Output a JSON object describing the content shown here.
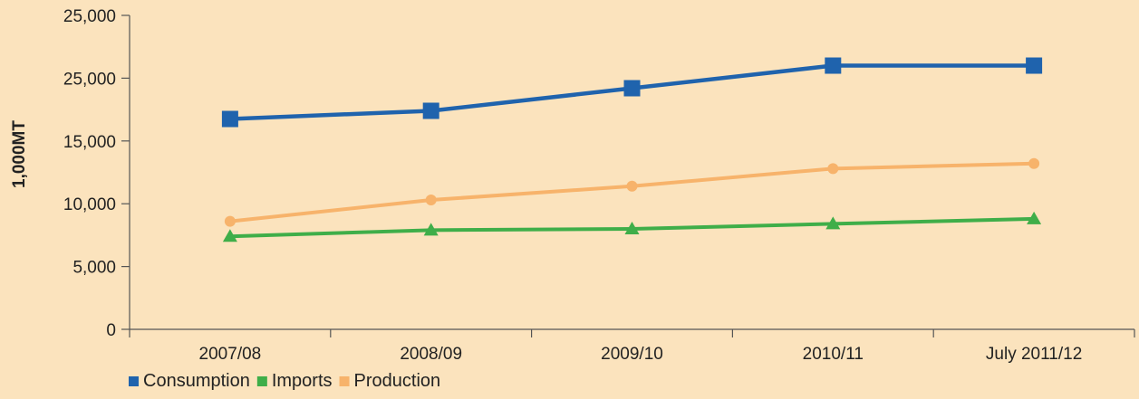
{
  "chart_data": {
    "type": "line",
    "title": "",
    "ylabel": "1,000MT",
    "xlabel": "",
    "categories": [
      "2007/08",
      "2008/09",
      "2009/10",
      "2010/11",
      "July 2011/12"
    ],
    "y_tick_labels": [
      "0",
      "5,000",
      "10,000",
      "15,000",
      "25,000",
      "25,000"
    ],
    "ylim": [
      0,
      25000
    ],
    "grid": false,
    "legend_position": "bottom-left",
    "series": [
      {
        "name": "Consumption",
        "color": "#1f63ad",
        "marker": "square",
        "values": [
          16750,
          17400,
          19200,
          21000,
          21000
        ]
      },
      {
        "name": "Imports",
        "color": "#3fae49",
        "marker": "triangle",
        "values": [
          7400,
          7900,
          8000,
          8400,
          8800
        ]
      },
      {
        "name": "Production",
        "color": "#f7b36b",
        "marker": "circle",
        "values": [
          8600,
          10300,
          11400,
          12800,
          13200
        ]
      }
    ]
  }
}
